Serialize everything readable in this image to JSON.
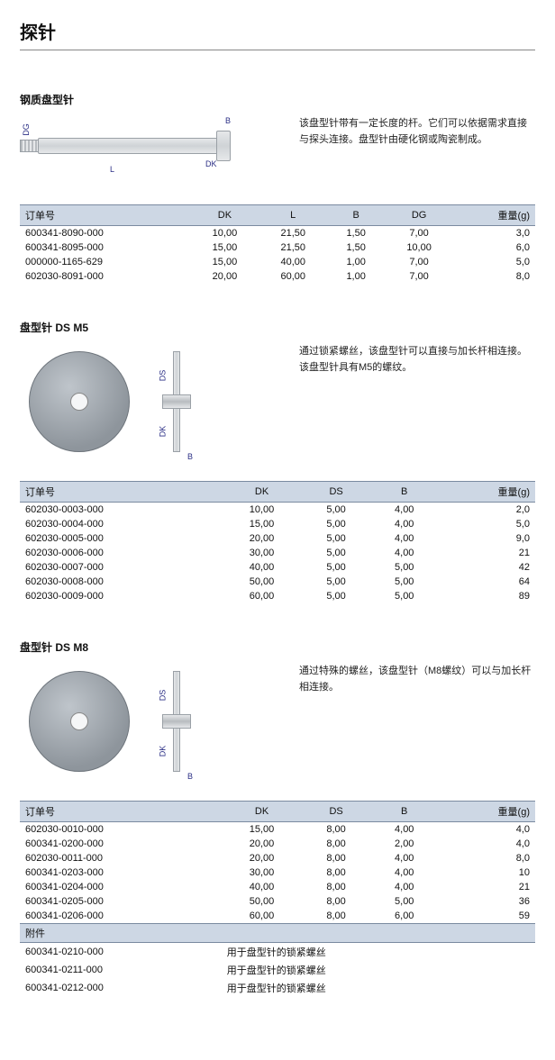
{
  "page": {
    "title": "探针"
  },
  "sections": [
    {
      "title": "钢质盘型针",
      "desc": "该盘型针带有一定长度的杆。它们可以依据需求直接与探头连接。盘型针由硬化钢或陶瓷制成。",
      "diagram": {
        "type": "shaft",
        "labels": {
          "B": "B",
          "DK": "DK",
          "DG": "DG",
          "L": "L"
        }
      },
      "columns": [
        "订单号",
        "DK",
        "L",
        "B",
        "DG",
        "重量(g)"
      ],
      "rows": [
        [
          "600341-8090-000",
          "10,00",
          "21,50",
          "1,50",
          "7,00",
          "3,0"
        ],
        [
          "600341-8095-000",
          "15,00",
          "21,50",
          "1,50",
          "10,00",
          "6,0"
        ],
        [
          "000000-1165-629",
          "15,00",
          "40,00",
          "1,00",
          "7,00",
          "5,0"
        ],
        [
          "602030-8091-000",
          "20,00",
          "60,00",
          "1,00",
          "7,00",
          "8,0"
        ]
      ]
    },
    {
      "title": "盘型针  DS M5",
      "desc": "通过锁紧螺丝，该盘型针可以直接与加长杆相连接。该盘型针具有M5的螺纹。",
      "diagram": {
        "type": "disc",
        "labels": {
          "DS": "DS",
          "DK": "DK",
          "B": "B"
        }
      },
      "columns": [
        "订单号",
        "DK",
        "DS",
        "B",
        "重量(g)"
      ],
      "rows": [
        [
          "602030-0003-000",
          "10,00",
          "5,00",
          "4,00",
          "2,0"
        ],
        [
          "602030-0004-000",
          "15,00",
          "5,00",
          "4,00",
          "5,0"
        ],
        [
          "602030-0005-000",
          "20,00",
          "5,00",
          "4,00",
          "9,0"
        ],
        [
          "602030-0006-000",
          "30,00",
          "5,00",
          "4,00",
          "21"
        ],
        [
          "602030-0007-000",
          "40,00",
          "5,00",
          "5,00",
          "42"
        ],
        [
          "602030-0008-000",
          "50,00",
          "5,00",
          "5,00",
          "64"
        ],
        [
          "602030-0009-000",
          "60,00",
          "5,00",
          "5,00",
          "89"
        ]
      ]
    },
    {
      "title": "盘型针  DS M8",
      "desc": "通过特殊的螺丝，该盘型针（M8螺纹）可以与加长杆相连接。",
      "diagram": {
        "type": "disc",
        "labels": {
          "DS": "DS",
          "DK": "DK",
          "B": "B"
        }
      },
      "columns": [
        "订单号",
        "DK",
        "DS",
        "B",
        "重量(g)"
      ],
      "rows": [
        [
          "602030-0010-000",
          "15,00",
          "8,00",
          "4,00",
          "4,0"
        ],
        [
          "600341-0200-000",
          "20,00",
          "8,00",
          "2,00",
          "4,0"
        ],
        [
          "602030-0011-000",
          "20,00",
          "8,00",
          "4,00",
          "8,0"
        ],
        [
          "600341-0203-000",
          "30,00",
          "8,00",
          "4,00",
          "10"
        ],
        [
          "600341-0204-000",
          "40,00",
          "8,00",
          "4,00",
          "21"
        ],
        [
          "600341-0205-000",
          "50,00",
          "8,00",
          "5,00",
          "36"
        ],
        [
          "600341-0206-000",
          "60,00",
          "8,00",
          "6,00",
          "59"
        ]
      ],
      "accessories": {
        "header": "附件",
        "rows": [
          [
            "600341-0210-000",
            "用于盘型针的锁紧螺丝"
          ],
          [
            "600341-0211-000",
            "用于盘型针的锁紧螺丝"
          ],
          [
            "600341-0212-000",
            "用于盘型针的锁紧螺丝"
          ]
        ]
      }
    }
  ],
  "colors": {
    "header_bg": "#cdd7e4",
    "header_border": "#7a8aa0",
    "dim_label": "#2b2f85"
  }
}
